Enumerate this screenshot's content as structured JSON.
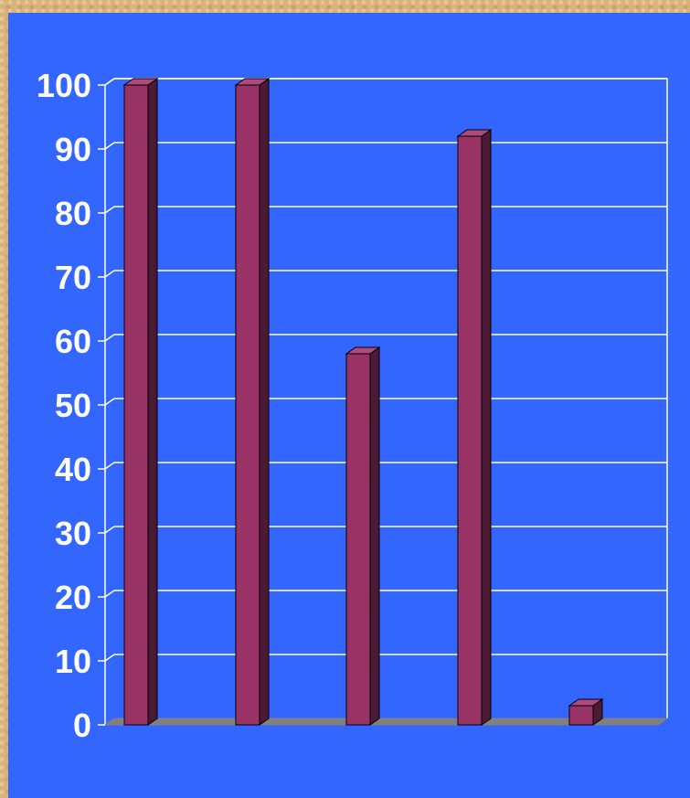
{
  "chart_data": {
    "type": "bar",
    "categories": [
      "",
      "",
      "",
      "",
      ""
    ],
    "values": [
      100,
      100,
      58,
      92,
      3
    ],
    "title": "",
    "xlabel": "",
    "ylabel": "",
    "ylim": [
      0,
      100
    ],
    "yticks": [
      0,
      10,
      20,
      30,
      40,
      50,
      60,
      70,
      80,
      90,
      100
    ],
    "grid": true,
    "style": "3d",
    "colors": {
      "bar_front": "#993366",
      "bar_top": "#b04a7c",
      "bar_side": "#4d1a33",
      "floor": "#808080",
      "background": "#3366ff",
      "gridline": "#ffffff",
      "text": "#ffffff"
    }
  }
}
